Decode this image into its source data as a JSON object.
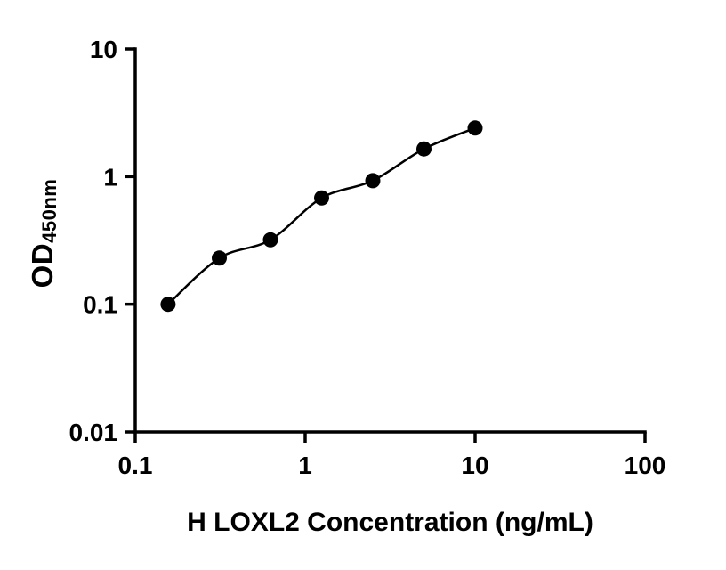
{
  "chart_data": {
    "type": "scatter",
    "title": "",
    "xlabel": "H LOXL2 Concentration (ng/mL)",
    "ylabel": "OD",
    "ylabel_subscript": "450nm",
    "x": [
      0.156,
      0.3125,
      0.625,
      1.25,
      2.5,
      5,
      10
    ],
    "y": [
      0.1,
      0.23,
      0.32,
      0.68,
      0.93,
      1.65,
      2.4
    ],
    "x_scale": "log10",
    "y_scale": "log10",
    "xlim": [
      0.1,
      100
    ],
    "ylim": [
      0.01,
      10
    ],
    "xticks": {
      "values": [
        0.1,
        1,
        10,
        100
      ],
      "labels": [
        "0.1",
        "1",
        "10",
        "100"
      ]
    },
    "yticks": {
      "values": [
        0.01,
        0.1,
        1,
        10
      ],
      "labels": [
        "0.01",
        "0.1",
        "1",
        "10"
      ]
    },
    "grid": false,
    "legend": "none",
    "connect": "smooth-curve",
    "marker": "filled-circle",
    "marker_color": "#000000",
    "line_color": "#000000",
    "axis_color": "#000000",
    "background": "#ffffff"
  }
}
